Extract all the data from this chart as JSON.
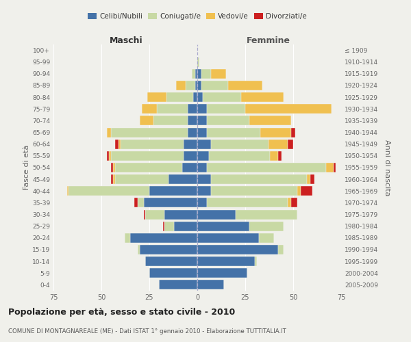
{
  "age_groups": [
    "0-4",
    "5-9",
    "10-14",
    "15-19",
    "20-24",
    "25-29",
    "30-34",
    "35-39",
    "40-44",
    "45-49",
    "50-54",
    "55-59",
    "60-64",
    "65-69",
    "70-74",
    "75-79",
    "80-84",
    "85-89",
    "90-94",
    "95-99",
    "100+"
  ],
  "birth_years": [
    "2005-2009",
    "2000-2004",
    "1995-1999",
    "1990-1994",
    "1985-1989",
    "1980-1984",
    "1975-1979",
    "1970-1974",
    "1965-1969",
    "1960-1964",
    "1955-1959",
    "1950-1954",
    "1945-1949",
    "1940-1944",
    "1935-1939",
    "1930-1934",
    "1925-1929",
    "1920-1924",
    "1915-1919",
    "1910-1914",
    "≤ 1909"
  ],
  "maschi": {
    "celibi": [
      20,
      25,
      27,
      30,
      35,
      12,
      17,
      28,
      25,
      15,
      8,
      7,
      7,
      5,
      5,
      5,
      2,
      1,
      1,
      0,
      0
    ],
    "coniugati": [
      0,
      0,
      0,
      1,
      3,
      5,
      10,
      3,
      42,
      28,
      35,
      38,
      33,
      40,
      18,
      16,
      14,
      5,
      2,
      0,
      0
    ],
    "vedovi": [
      0,
      0,
      0,
      0,
      0,
      0,
      0,
      0,
      1,
      1,
      1,
      1,
      1,
      2,
      7,
      8,
      10,
      5,
      0,
      0,
      0
    ],
    "divorziati": [
      0,
      0,
      0,
      0,
      0,
      1,
      1,
      2,
      0,
      1,
      1,
      1,
      2,
      0,
      0,
      0,
      0,
      0,
      0,
      0,
      0
    ]
  },
  "femmine": {
    "nubili": [
      14,
      26,
      30,
      42,
      32,
      27,
      20,
      5,
      7,
      7,
      5,
      6,
      7,
      5,
      5,
      5,
      3,
      2,
      2,
      0,
      0
    ],
    "coniugate": [
      0,
      0,
      1,
      3,
      8,
      18,
      32,
      42,
      45,
      50,
      62,
      32,
      30,
      28,
      22,
      20,
      20,
      14,
      5,
      1,
      0
    ],
    "vedove": [
      0,
      0,
      0,
      0,
      0,
      0,
      0,
      2,
      2,
      2,
      4,
      4,
      10,
      16,
      22,
      45,
      22,
      18,
      8,
      0,
      0
    ],
    "divorziate": [
      0,
      0,
      0,
      0,
      0,
      0,
      0,
      3,
      6,
      2,
      1,
      2,
      3,
      2,
      0,
      0,
      0,
      0,
      0,
      0,
      0
    ]
  },
  "colors": {
    "celibi": "#4472a8",
    "coniugati": "#c8d9a4",
    "vedovi": "#f0c050",
    "divorziati": "#cc2020"
  },
  "xlim": 75,
  "title": "Popolazione per età, sesso e stato civile - 2010",
  "subtitle": "COMUNE DI MONTAGNAREALE (ME) - Dati ISTAT 1° gennaio 2010 - Elaborazione TUTTITALIA.IT",
  "ylabel_left": "Fasce di età",
  "ylabel_right": "Anni di nascita",
  "xlabel_left": "Maschi",
  "xlabel_right": "Femmine",
  "bg_color": "#f0f0eb",
  "grid_color": "#ffffff",
  "text_color": "#666666"
}
